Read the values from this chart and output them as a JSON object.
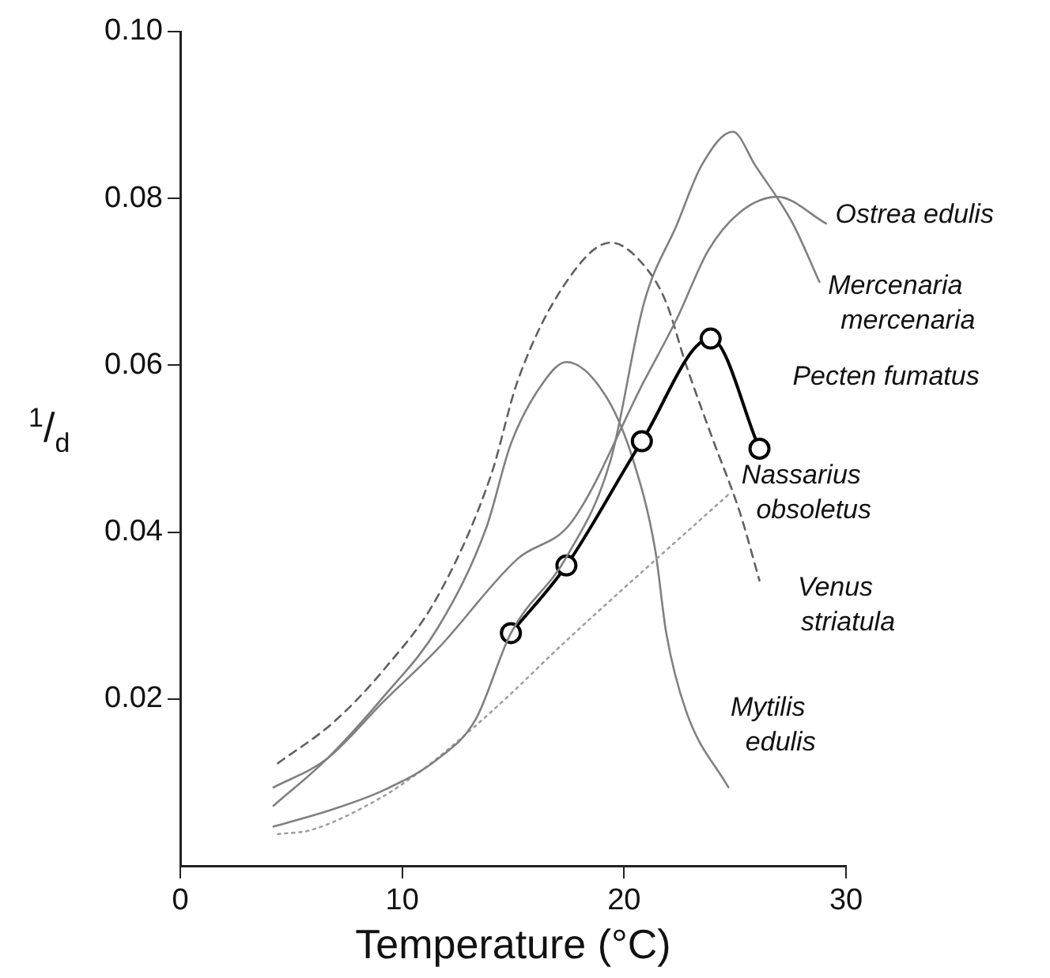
{
  "chart_data": {
    "type": "line",
    "xlabel": "Temperature (°C)",
    "ylabel": "$^{1}$/$_{d}$",
    "xlim": [
      0,
      30
    ],
    "xticks": [
      0,
      10,
      20,
      30
    ],
    "ylim": [
      0,
      0.1
    ],
    "yticks": [
      0.02,
      0.04,
      0.06,
      0.08,
      {
        "value": 0.1,
        "label": "0.10"
      }
    ],
    "grid": false,
    "legend": false,
    "marker": "none",
    "line_style": "solid",
    "series": [
      {
        "name": "Mercenaria mercenaria",
        "color": "#808080",
        "x": [
          4.2,
          6.9,
          9.2,
          11.6,
          13.3,
          14.9,
          17.4,
          19.4,
          20.9,
          22.4,
          23.5,
          24.9,
          25.9,
          27.6,
          28.8
        ],
        "values": [
          0.0047,
          0.0068,
          0.0091,
          0.0128,
          0.0175,
          0.0279,
          0.037,
          0.0487,
          0.0675,
          0.077,
          0.084,
          0.088,
          0.084,
          0.077,
          0.07
        ]
      },
      {
        "name": "Ostrea edulis",
        "color": "#808080",
        "x": [
          4.2,
          6.6,
          9.2,
          11.6,
          15.2,
          17.6,
          20.9,
          22.4,
          23.8,
          25.2,
          26.9,
          29.1
        ],
        "values": [
          0.0094,
          0.0128,
          0.0198,
          0.026,
          0.0368,
          0.0411,
          0.0581,
          0.0657,
          0.0738,
          0.0783,
          0.0802,
          0.077
        ]
      },
      {
        "name": "Pecten fumatus",
        "color": "#000000",
        "marker": "circle",
        "x": [
          14.9,
          17.4,
          20.8,
          23.9,
          26.1
        ],
        "values": [
          0.0279,
          0.036,
          0.0509,
          0.0632,
          0.05
        ]
      },
      {
        "name": "Nassarius obsoletus",
        "color": "#a0a0a0",
        "line_style": "dotted",
        "x": [
          4.4,
          5.9,
          9.0,
          10.6,
          11.4,
          14.4,
          17.4,
          24.7
        ],
        "values": [
          0.0038,
          0.0043,
          0.0081,
          0.0109,
          0.0125,
          0.0194,
          0.027,
          0.0445
        ]
      },
      {
        "name": "Venus striatula",
        "color": "#606060",
        "line_style": "dashed",
        "x": [
          4.4,
          6.9,
          9.2,
          11.6,
          14.0,
          15.2,
          17.4,
          19.4,
          21.1,
          21.9,
          22.8,
          24.0,
          25.2,
          26.1
        ],
        "values": [
          0.0123,
          0.0172,
          0.0236,
          0.0323,
          0.0468,
          0.0581,
          0.07,
          0.0747,
          0.0713,
          0.0675,
          0.06,
          0.0511,
          0.0425,
          0.0342
        ]
      },
      {
        "name": "Mytilis edulis",
        "color": "#808080",
        "x": [
          4.2,
          6.6,
          9.2,
          11.6,
          13.8,
          14.9,
          16.4,
          17.4,
          19.2,
          20.4,
          21.4,
          21.9,
          22.8,
          24.7
        ],
        "values": [
          0.0072,
          0.0128,
          0.0204,
          0.0285,
          0.0406,
          0.0506,
          0.0581,
          0.0604,
          0.0562,
          0.0487,
          0.0379,
          0.0279,
          0.0185,
          0.0094
        ]
      }
    ]
  }
}
